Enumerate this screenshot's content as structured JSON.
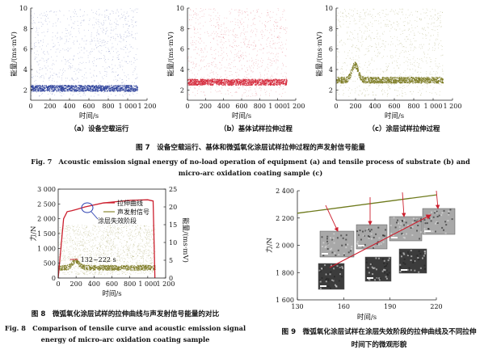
{
  "fig7": {
    "panels": [
      {
        "id": "a",
        "subcaption": "（a）设备空载运行",
        "color": "#2b3f9a",
        "baseline": 2.2,
        "hump": null,
        "ylabel": "能量/(ms·mV)",
        "xlabel": "时间/s"
      },
      {
        "id": "b",
        "subcaption": "（b）基体试样拉伸过程",
        "color": "#d4283a",
        "baseline": 2.8,
        "hump": null,
        "ylabel": "能量/(ms·mV)",
        "xlabel": "时间/s"
      },
      {
        "id": "c",
        "subcaption": "（c）涂层试样拉伸过程",
        "color": "#7c7a22",
        "baseline": 3.0,
        "hump": {
          "center": 190,
          "peak": 4.5
        },
        "ylabel": "能量/(ms·mV)",
        "xlabel": "时间/s"
      }
    ],
    "xticks": [
      "0",
      "200",
      "400",
      "600",
      "800",
      "1 000",
      "1 200"
    ],
    "yticks": [
      "2",
      "4",
      "6",
      "8",
      "10"
    ],
    "caption_cn": "图 7　设备空载运行、基体和微弧氧化涂层试样拉伸过程的声发射信号能量",
    "caption_en_1": "Fig. 7　Acoustic emission signal energy of no-load operation of equipment (a) and tensile process of substrate (b) and",
    "caption_en_2": "micro-arc oxidation coating sample (c)"
  },
  "fig8": {
    "ylabel_left": "力/N",
    "ylabel_right": "能量/(ms·mV)",
    "xlabel": "时间/s",
    "left_ticks": [
      "0",
      "500",
      "1 000",
      "1 500",
      "2 000",
      "2 500",
      "3 000"
    ],
    "right_ticks": [
      "0",
      "5",
      "10",
      "15",
      "20",
      "25"
    ],
    "xticks": [
      "0",
      "200",
      "400",
      "600",
      "800",
      "1 000",
      "1 200"
    ],
    "legend": [
      "拉伸曲线",
      "声发射信号"
    ],
    "annotation_failure": "涂层失效阶段",
    "annotation_interval": "132~222 s",
    "caption_cn": "图 8　微弧氧化涂层试样的拉伸曲线与声发射信号能量的对比",
    "caption_en_1": "Fig. 8　Comparison of tensile curve and acoustic emission signal",
    "caption_en_2": "energy of micro-arc oxidation coating sample"
  },
  "fig9": {
    "ylabel": "力/N",
    "xlabel": "时间/s",
    "yticks": [
      "1 600",
      "1 800",
      "2 000",
      "2 200",
      "2 400"
    ],
    "xticks": [
      "130",
      "160",
      "190",
      "220"
    ],
    "curve": {
      "x": [
        130,
        160,
        190,
        220
      ],
      "y": [
        2235,
        2280,
        2325,
        2370
      ]
    },
    "caption_1": "图 9　微弧氧化涂层试样在涂层失效阶段的拉伸曲线及不同拉伸",
    "caption_2": "时间下的微观形貌"
  },
  "chart_data": [
    {
      "type": "scatter",
      "xlim": [
        0,
        1200
      ],
      "ylim": [
        1,
        10
      ],
      "xlabel": "时间/s",
      "ylabel": "能量/(ms·mV)",
      "series": [
        {
          "values_baseline": 2.2
        }
      ]
    },
    {
      "type": "scatter",
      "xlim": [
        0,
        1200
      ],
      "ylim": [
        1,
        10
      ],
      "xlabel": "时间/s",
      "ylabel": "能量/(ms·mV)",
      "series": [
        {
          "values_baseline": 2.8
        }
      ]
    },
    {
      "type": "scatter",
      "xlim": [
        0,
        1200
      ],
      "ylim": [
        1,
        10
      ],
      "xlabel": "时间/s",
      "ylabel": "能量/(ms·mV)",
      "series": [
        {
          "values_baseline": 3.0
        }
      ]
    },
    {
      "type": "line",
      "xlim": [
        0,
        1200
      ],
      "ylim": [
        0,
        3000
      ],
      "xlabel": "时间/s",
      "ylabel": "力/N",
      "series": [
        {
          "name": "拉伸曲线",
          "x": [
            0,
            60,
            100,
            150,
            200,
            300,
            500,
            800,
            1000,
            1060,
            1080
          ],
          "y": [
            0,
            2000,
            2240,
            2270,
            2310,
            2400,
            2530,
            2620,
            2640,
            2600,
            0
          ]
        },
        {
          "name": "声发射信号",
          "baseline": 3
        }
      ]
    },
    {
      "type": "line",
      "xlim": [
        130,
        220
      ],
      "ylim": [
        1600,
        2400
      ],
      "xlabel": "时间/s",
      "ylabel": "力/N",
      "series": [
        {
          "x": [
            130,
            160,
            190,
            220
          ],
          "y": [
            2235,
            2280,
            2325,
            2370
          ]
        }
      ]
    }
  ]
}
